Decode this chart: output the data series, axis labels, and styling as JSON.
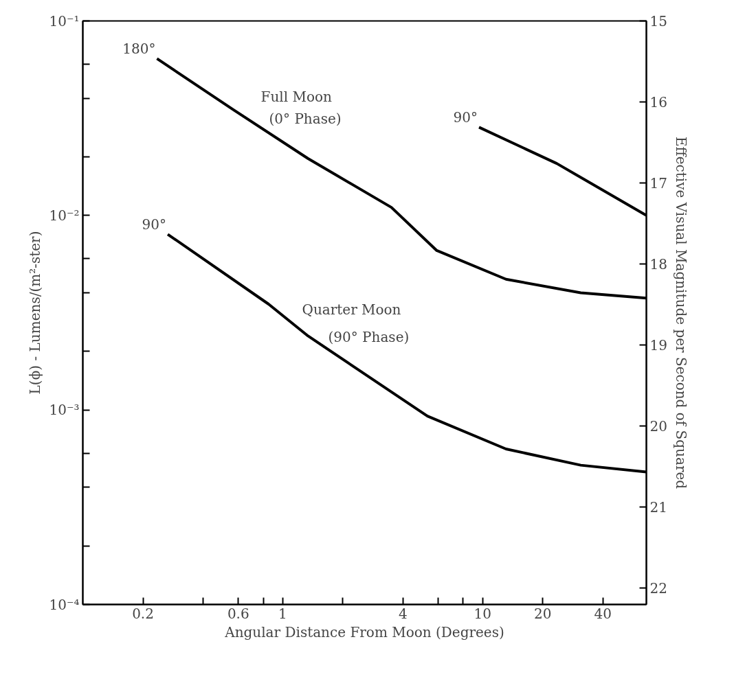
{
  "chart_data": {
    "type": "line",
    "xlabel": "Angular Distance From Moon (Degrees)",
    "ylabel": "L(ϕ) - Lumens/(m²-ster)",
    "y2label": "Effective Visual Magnitude per Second of Squared",
    "log": "xy",
    "grid": false,
    "marker": "none",
    "line_style": "solid",
    "xlim": [
      0.1,
      66
    ],
    "ylim": [
      0.0001,
      0.1
    ],
    "y2lim": [
      22.2,
      15
    ],
    "xticks": [
      0.2,
      {
        "value": 0.4,
        "label": null
      },
      0.6,
      {
        "value": 0.8,
        "label": null
      },
      1,
      {
        "value": 2,
        "label": null
      },
      4,
      {
        "value": 6,
        "label": null
      },
      {
        "value": 8,
        "label": null
      },
      10,
      20,
      40
    ],
    "yticks": [
      {
        "value": 0.0001,
        "label": "10⁻⁴"
      },
      {
        "value": 0.0002,
        "label": null
      },
      {
        "value": 0.0004,
        "label": null
      },
      {
        "value": 0.0006,
        "label": null
      },
      {
        "value": 0.001,
        "label": "10⁻³"
      },
      {
        "value": 0.002,
        "label": null
      },
      {
        "value": 0.004,
        "label": null
      },
      {
        "value": 0.006,
        "label": null
      },
      {
        "value": 0.01,
        "label": "10⁻²"
      },
      {
        "value": 0.02,
        "label": null
      },
      {
        "value": 0.04,
        "label": null
      },
      {
        "value": 0.06,
        "label": null
      },
      {
        "value": 0.1,
        "label": "10⁻¹"
      }
    ],
    "y2ticks": [
      15,
      16,
      17,
      18,
      19,
      20,
      21,
      22
    ],
    "series": [
      {
        "color": "#000000",
        "x": [
          0.235,
          0.565,
          1.34,
          3.5,
          5.9,
          13.1,
          31,
          66
        ],
        "values": [
          0.064,
          0.035,
          0.0196,
          0.011,
          0.0066,
          0.0047,
          0.004,
          0.00376
        ]
      },
      {
        "color": "#000000",
        "x": [
          9.6,
          23.5,
          66
        ],
        "values": [
          0.0284,
          0.0185,
          0.01
        ]
      },
      {
        "color": "#000000",
        "x": [
          0.266,
          0.85,
          1.34,
          2.37,
          5.3,
          13.1,
          31,
          66
        ],
        "values": [
          0.008,
          0.0035,
          0.0024,
          0.00162,
          0.00093,
          0.00063,
          0.00052,
          0.00048
        ]
      }
    ],
    "annotations": [
      {
        "text": "180°",
        "x": 0.235,
        "y": 0.064
      },
      {
        "text": "90°",
        "x": 9.6,
        "y": 0.0284
      },
      {
        "text": "90°",
        "x": 0.266,
        "y": 0.008
      },
      "Full Moon",
      "(0° Phase)",
      "Quarter Moon",
      "(90° Phase)"
    ]
  }
}
